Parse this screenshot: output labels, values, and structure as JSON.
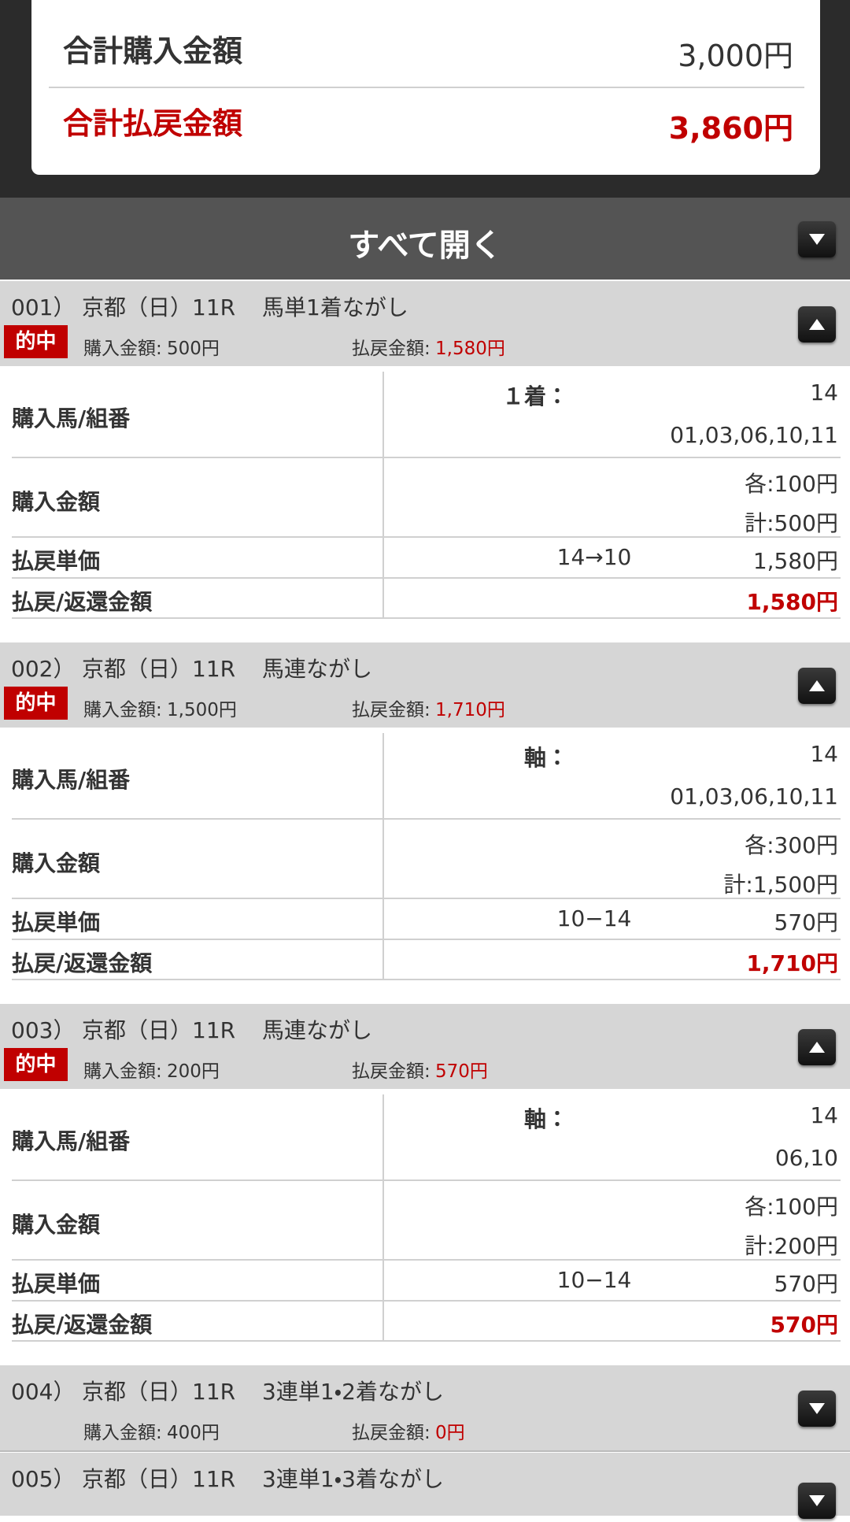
{
  "summary": {
    "purchase_label": "合計購入金額",
    "purchase_value": "3,000円",
    "payout_label": "合計払戻金額",
    "payout_value": "3,860円"
  },
  "expand_all": "すべて開く",
  "tickets": [
    {
      "number": "001）",
      "race": "京都（日）11R",
      "bet_type": "馬単1着ながし",
      "status": "的中",
      "purchase_label": "購入金額:",
      "purchase_value": "500円",
      "payout_label": "払戻金額:",
      "payout_value": "1,580円",
      "details": {
        "horses_label": "購入馬/組番",
        "horses_key": "１着：",
        "horses": [
          "14",
          "01,03,06,10,11"
        ],
        "amount_label": "購入金額",
        "amounts": [
          "各:100円",
          "計:500円"
        ],
        "unit_label": "払戻単価",
        "unit_combo": "14→10",
        "unit_value": "1,580円",
        "refund_label": "払戻/返還金額",
        "refund_value": "1,580円"
      }
    },
    {
      "number": "002）",
      "race": "京都（日）11R",
      "bet_type": "馬連ながし",
      "status": "的中",
      "purchase_label": "購入金額:",
      "purchase_value": "1,500円",
      "payout_label": "払戻金額:",
      "payout_value": "1,710円",
      "details": {
        "horses_label": "購入馬/組番",
        "horses_key": "軸：",
        "horses": [
          "14",
          "01,03,06,10,11"
        ],
        "amount_label": "購入金額",
        "amounts": [
          "各:300円",
          "計:1,500円"
        ],
        "unit_label": "払戻単価",
        "unit_combo": "10−14",
        "unit_value": "570円",
        "refund_label": "払戻/返還金額",
        "refund_value": "1,710円"
      }
    },
    {
      "number": "003）",
      "race": "京都（日）11R",
      "bet_type": "馬連ながし",
      "status": "的中",
      "purchase_label": "購入金額:",
      "purchase_value": "200円",
      "payout_label": "払戻金額:",
      "payout_value": "570円",
      "details": {
        "horses_label": "購入馬/組番",
        "horses_key": "軸：",
        "horses": [
          "14",
          "06,10"
        ],
        "amount_label": "購入金額",
        "amounts": [
          "各:100円",
          "計:200円"
        ],
        "unit_label": "払戻単価",
        "unit_combo": "10−14",
        "unit_value": "570円",
        "refund_label": "払戻/返還金額",
        "refund_value": "570円"
      }
    },
    {
      "number": "004）",
      "race": "京都（日）11R",
      "bet_type": "3連単1・2着ながし",
      "purchase_label": "購入金額:",
      "purchase_value": "400円",
      "payout_label": "払戻金額:",
      "payout_value": "0円"
    },
    {
      "number": "005）",
      "race": "京都（日）11R",
      "bet_type": "3連単1・3着ながし"
    }
  ]
}
